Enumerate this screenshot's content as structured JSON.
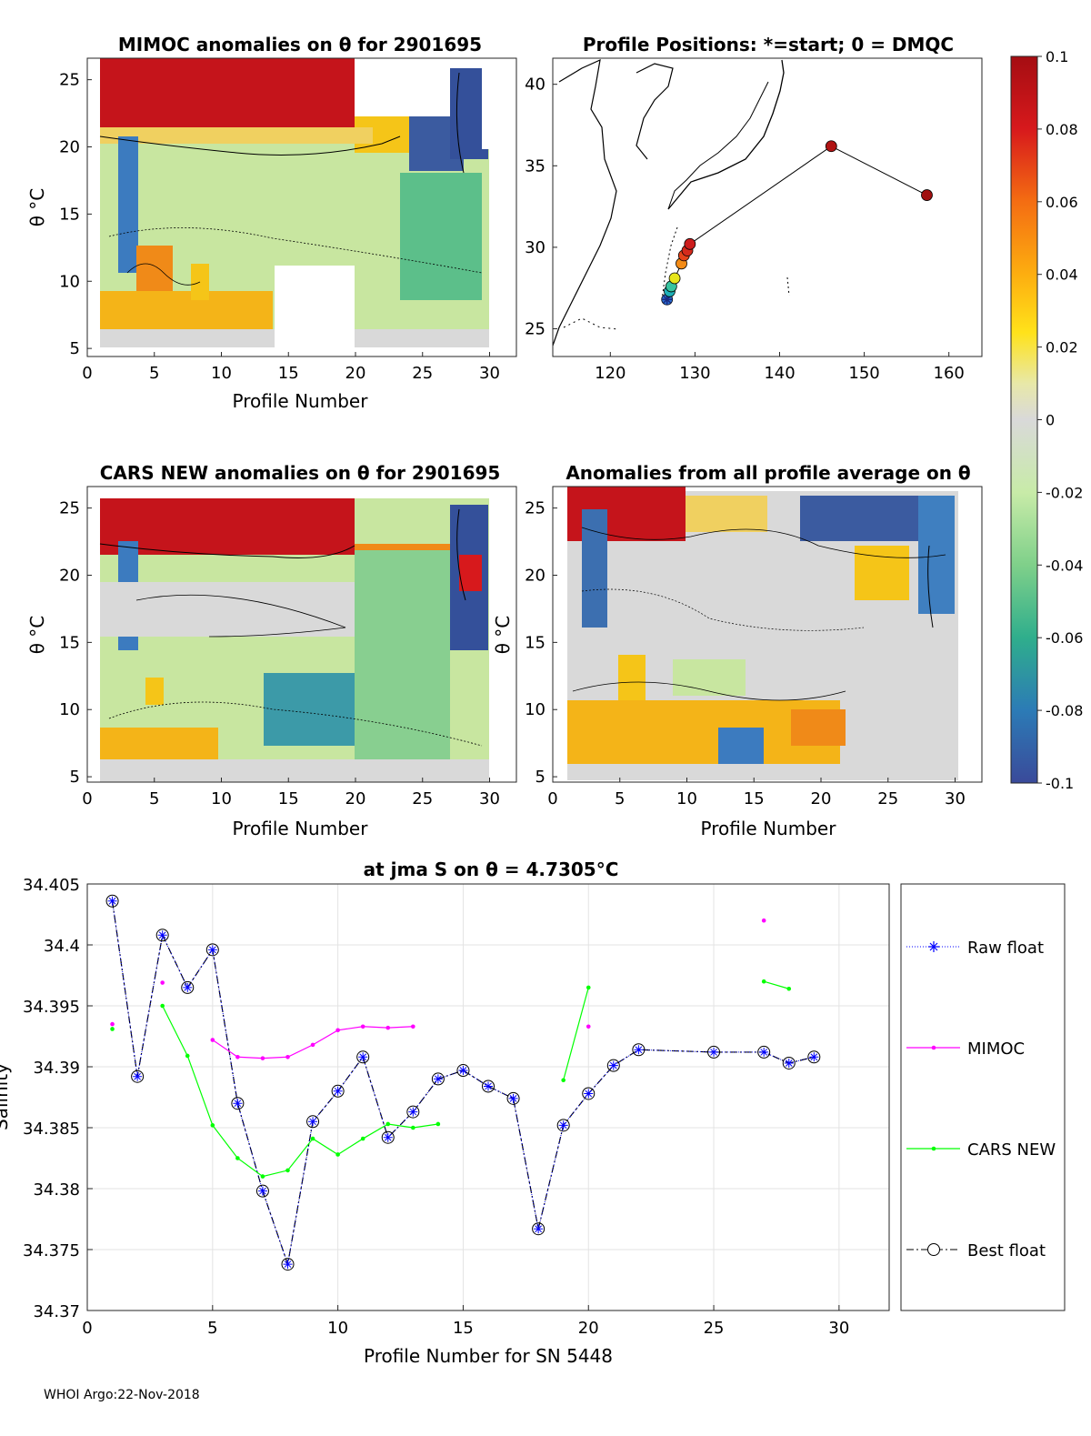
{
  "footer": "WHOI Argo:22-Nov-2018",
  "panels": {
    "mimoc": {
      "title": "MIMOC anomalies on θ  for 2901695",
      "xlabel": "Profile Number",
      "ylabel": "θ °C",
      "xticks": [
        "0",
        "5",
        "10",
        "15",
        "20",
        "25",
        "30"
      ],
      "yticks": [
        "5",
        "10",
        "15",
        "20",
        "25"
      ]
    },
    "map": {
      "title": "Profile Positions: *=start; 0 = DMQC",
      "xticks": [
        "120",
        "130",
        "140",
        "150",
        "160"
      ],
      "yticks": [
        "25",
        "30",
        "35",
        "40"
      ]
    },
    "cars": {
      "title": "CARS NEW anomalies on θ for 2901695",
      "xlabel": "Profile Number",
      "ylabel": "θ °C",
      "xticks": [
        "0",
        "5",
        "10",
        "15",
        "20",
        "25",
        "30"
      ],
      "yticks": [
        "5",
        "10",
        "15",
        "20",
        "25"
      ]
    },
    "avg": {
      "title": "Anomalies from all profile average on θ",
      "xlabel": "Profile Number",
      "ylabel": "θ °C",
      "xticks": [
        "0",
        "5",
        "10",
        "15",
        "20",
        "25",
        "30"
      ],
      "yticks": [
        "5",
        "10",
        "15",
        "20",
        "25"
      ]
    }
  },
  "colorbar": {
    "ticks": [
      "0.1",
      "0.08",
      "0.06",
      "0.04",
      "0.02",
      "0",
      "-0.02",
      "-0.04",
      "-0.06",
      "-0.08",
      "-0.1"
    ]
  },
  "colors": {
    "raw": "#0000ff",
    "mimoc": "#ff00ff",
    "cars": "#00ff00",
    "best": "#000000"
  },
  "map_positions": [
    {
      "lon": 126.7,
      "lat": 26.8,
      "color": "#2c6ed4",
      "start": true
    },
    {
      "lon": 127.0,
      "lat": 27.3,
      "color": "#1fb0b8"
    },
    {
      "lon": 127.2,
      "lat": 27.6,
      "color": "#38c4a0"
    },
    {
      "lon": 127.6,
      "lat": 28.1,
      "color": "#e7e51a"
    },
    {
      "lon": 128.4,
      "lat": 29.0,
      "color": "#f38b16"
    },
    {
      "lon": 128.7,
      "lat": 29.5,
      "color": "#e5431a"
    },
    {
      "lon": 129.1,
      "lat": 29.8,
      "color": "#d52a1c"
    },
    {
      "lon": 129.4,
      "lat": 30.2,
      "color": "#cc1d1d"
    },
    {
      "lon": 146.1,
      "lat": 36.2,
      "color": "#b01414"
    },
    {
      "lon": 157.4,
      "lat": 33.2,
      "color": "#a01010"
    }
  ],
  "chart_data": {
    "type": "line",
    "title": "at jma S on θ = 4.7305°C",
    "xlabel": "Profile Number for SN 5448",
    "ylabel": "Salinity",
    "xlim": [
      0,
      32
    ],
    "ylim": [
      34.37,
      34.405
    ],
    "xticks": [
      "0",
      "5",
      "10",
      "15",
      "20",
      "25",
      "30"
    ],
    "yticks": [
      "34.37",
      "34.375",
      "34.38",
      "34.385",
      "34.39",
      "34.395",
      "34.4",
      "34.405"
    ],
    "series": [
      {
        "name": "Raw float",
        "style": "dotted-star",
        "x": [
          1,
          2,
          3,
          4,
          5,
          6,
          7,
          8,
          9,
          10,
          11,
          12,
          13,
          14,
          15,
          16,
          17,
          18,
          19,
          20,
          21,
          22,
          25,
          27,
          28,
          29
        ],
        "y": [
          34.4036,
          34.3892,
          34.4008,
          34.3965,
          34.3996,
          34.387,
          34.3798,
          34.3738,
          34.3855,
          34.388,
          34.3908,
          34.3842,
          34.3863,
          34.389,
          34.3897,
          34.3884,
          34.3874,
          34.3767,
          34.3852,
          34.3878,
          34.3901,
          34.3914,
          34.3912,
          34.3912,
          34.3903,
          34.3908
        ]
      },
      {
        "name": "MIMOC",
        "style": "magenta-dot",
        "segments": [
          {
            "x": [
              1
            ],
            "y": [
              34.3935
            ]
          },
          {
            "x": [
              3
            ],
            "y": [
              34.3969
            ]
          },
          {
            "x": [
              5,
              6,
              7,
              8,
              9,
              10,
              11,
              12,
              13
            ],
            "y": [
              34.3922,
              34.3908,
              34.3907,
              34.3908,
              34.3918,
              34.393,
              34.3933,
              34.3932,
              34.3933
            ]
          },
          {
            "x": [
              20
            ],
            "y": [
              34.3933
            ]
          },
          {
            "x": [
              27
            ],
            "y": [
              34.402
            ]
          }
        ]
      },
      {
        "name": "CARS NEW",
        "style": "green-dot",
        "segments": [
          {
            "x": [
              1
            ],
            "y": [
              34.3931
            ]
          },
          {
            "x": [
              3,
              4,
              5,
              6,
              7,
              8,
              9,
              10,
              11,
              12,
              13,
              14
            ],
            "y": [
              34.395,
              34.3909,
              34.3852,
              34.3825,
              34.381,
              34.3815,
              34.3841,
              34.3828,
              34.3841,
              34.3853,
              34.385,
              34.3853
            ]
          },
          {
            "x": [
              19,
              20
            ],
            "y": [
              34.3889,
              34.3965
            ]
          },
          {
            "x": [
              27,
              28
            ],
            "y": [
              34.397,
              34.3964
            ]
          }
        ]
      },
      {
        "name": "Best float",
        "style": "dashdot-circle",
        "x": [
          1,
          2,
          3,
          4,
          5,
          6,
          7,
          8,
          9,
          10,
          11,
          12,
          13,
          14,
          15,
          16,
          17,
          18,
          19,
          20,
          21,
          22,
          25,
          27,
          28,
          29
        ],
        "y": [
          34.4036,
          34.3892,
          34.4008,
          34.3965,
          34.3996,
          34.387,
          34.3798,
          34.3738,
          34.3855,
          34.388,
          34.3908,
          34.3842,
          34.3863,
          34.389,
          34.3897,
          34.3884,
          34.3874,
          34.3767,
          34.3852,
          34.3878,
          34.3901,
          34.3914,
          34.3912,
          34.3912,
          34.3903,
          34.3908
        ]
      }
    ],
    "legend": [
      "Raw float",
      "MIMOC",
      "CARS NEW",
      "Best float"
    ],
    "legend_position": "right"
  }
}
